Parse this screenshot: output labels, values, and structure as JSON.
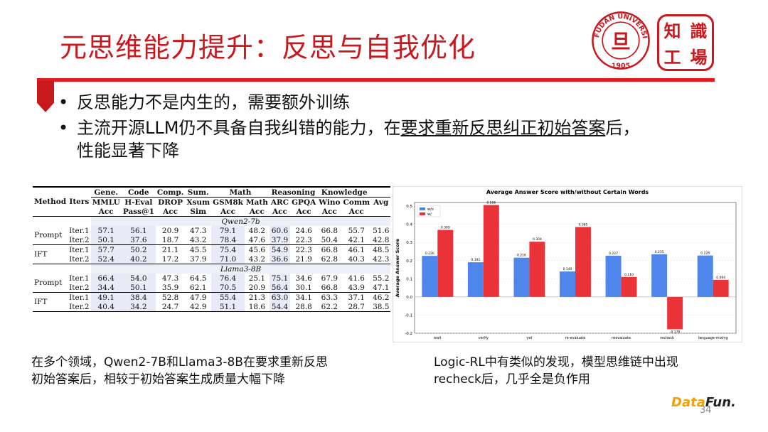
{
  "slide": {
    "title": "元思维能力提升：反思与自我优化",
    "bullets": [
      "反思能力不是内生的，需要额外训练",
      "主流开源LLM仍不具备自我纠错的能力，在",
      "要求重新反思纠正初始答案",
      "后，",
      "性能显著下降"
    ],
    "caption_left": [
      "在多个领域，Qwen2-7B和Llama3-8B在要求重新反思",
      "初始答案后，相较于初始答案生成质量大幅下降"
    ],
    "caption_right": [
      "Logic-RL中有类似的发现，模型思维链中出现",
      "recheck后，几乎全是负作用"
    ],
    "page_number": "34",
    "brand_pre": "Data",
    "brand_post": "Fun.",
    "logo_fudan_text": "FUDAN UNIVERSITY",
    "logo_fudan_year": "1905",
    "logo_fudan_char": "旦",
    "logo_zhi": [
      "知",
      "識",
      "工",
      "場"
    ],
    "accent_color": "#c8191e"
  },
  "table": {
    "header_groups": [
      "Gene.",
      "Code",
      "Comp.",
      "Sum.",
      "Math",
      "Reasoning",
      "Knowledge"
    ],
    "method": "Method",
    "iters": "Iters",
    "datasets": [
      "MMLU",
      "H-Eval",
      "DROP",
      "Xsum",
      "GSM8k",
      "Math",
      "ARC",
      "GPQA",
      "Wino",
      "Comm",
      "Avg"
    ],
    "metrics": [
      "Acc",
      "Pass@1",
      "Acc",
      "Sim",
      "Acc",
      "Acc",
      "Acc",
      "Acc",
      "Acc",
      "Acc"
    ],
    "sections": [
      {
        "model": "Qwen2-7b",
        "groups": [
          {
            "method": "Prompt",
            "rows": [
              {
                "iter": "Iter.1",
                "vals": [
                  "57.1",
                  "56.1",
                  "20.9",
                  "47.3",
                  "79.1",
                  "48.2",
                  "60.6",
                  "24.6",
                  "66.8",
                  "55.7",
                  "51.6"
                ]
              },
              {
                "iter": "Iter.2",
                "vals": [
                  "50.1",
                  "37.6",
                  "18.7",
                  "43.2",
                  "78.4",
                  "47.6",
                  "37.9",
                  "22.3",
                  "50.4",
                  "42.1",
                  "42.8"
                ]
              }
            ]
          },
          {
            "method": "IFT",
            "rows": [
              {
                "iter": "Iter.1",
                "vals": [
                  "57.7",
                  "50.2",
                  "21.1",
                  "45.5",
                  "75.4",
                  "45.6",
                  "54.9",
                  "22.3",
                  "66.8",
                  "46.1",
                  "48.5"
                ]
              },
              {
                "iter": "Iter.2",
                "vals": [
                  "52.4",
                  "40.2",
                  "17.2",
                  "37.9",
                  "71.0",
                  "43.2",
                  "36.6",
                  "21.9",
                  "62.8",
                  "40.3",
                  "42.3"
                ]
              }
            ]
          }
        ]
      },
      {
        "model": "Llama3-8B",
        "groups": [
          {
            "method": "Prompt",
            "rows": [
              {
                "iter": "Iter.1",
                "vals": [
                  "66.4",
                  "54.0",
                  "47.3",
                  "64.5",
                  "76.4",
                  "25.1",
                  "75.1",
                  "34.6",
                  "67.9",
                  "41.6",
                  "55.2"
                ]
              },
              {
                "iter": "Iter.2",
                "vals": [
                  "34.4",
                  "50.1",
                  "35.9",
                  "62.1",
                  "70.5",
                  "20.9",
                  "56.4",
                  "30.1",
                  "66.8",
                  "43.9",
                  "47.1"
                ]
              }
            ]
          },
          {
            "method": "IFT",
            "rows": [
              {
                "iter": "Iter.1",
                "vals": [
                  "49.1",
                  "38.4",
                  "52.8",
                  "47.9",
                  "55.4",
                  "21.3",
                  "63.0",
                  "34.1",
                  "63.3",
                  "37.1",
                  "46.2"
                ]
              },
              {
                "iter": "Iter.2",
                "vals": [
                  "40.4",
                  "34.2",
                  "24.7",
                  "42.9",
                  "51.1",
                  "18.6",
                  "54.4",
                  "28.8",
                  "62.2",
                  "28.7",
                  "38.5"
                ]
              }
            ]
          }
        ]
      }
    ]
  },
  "chart_data": {
    "type": "bar",
    "title": "Average Answer Score with/without Certain Words",
    "ylabel": "Average Answer Score",
    "categories": [
      "wait",
      "verify",
      "yet",
      "re-evaluate",
      "reevaluate",
      "recheck",
      "language-mixing"
    ],
    "series": [
      {
        "name": "w/o",
        "color": "#4f86ec",
        "values": [
          0.226,
          0.191,
          0.216,
          0.14,
          0.227,
          0.235,
          0.228
        ],
        "labels": [
          "0.226",
          "0.191",
          "0.216",
          "0.140",
          "0.227",
          "0.235",
          "0.228"
        ]
      },
      {
        "name": "w/",
        "color": "#ea3338",
        "values": [
          0.369,
          0.506,
          0.304,
          0.385,
          0.11,
          -0.178,
          0.094
        ],
        "labels": [
          "0.369",
          "0.506",
          "0.304",
          "0.385",
          "0.110",
          "-0.178",
          "0.094"
        ]
      }
    ],
    "ylim": [
      -0.2,
      0.52
    ],
    "yticks": [
      "-0.2",
      "-0.1",
      "0.0",
      "0.1",
      "0.2",
      "0.3",
      "0.4",
      "0.5"
    ],
    "legend": "top-left",
    "grid": true
  }
}
